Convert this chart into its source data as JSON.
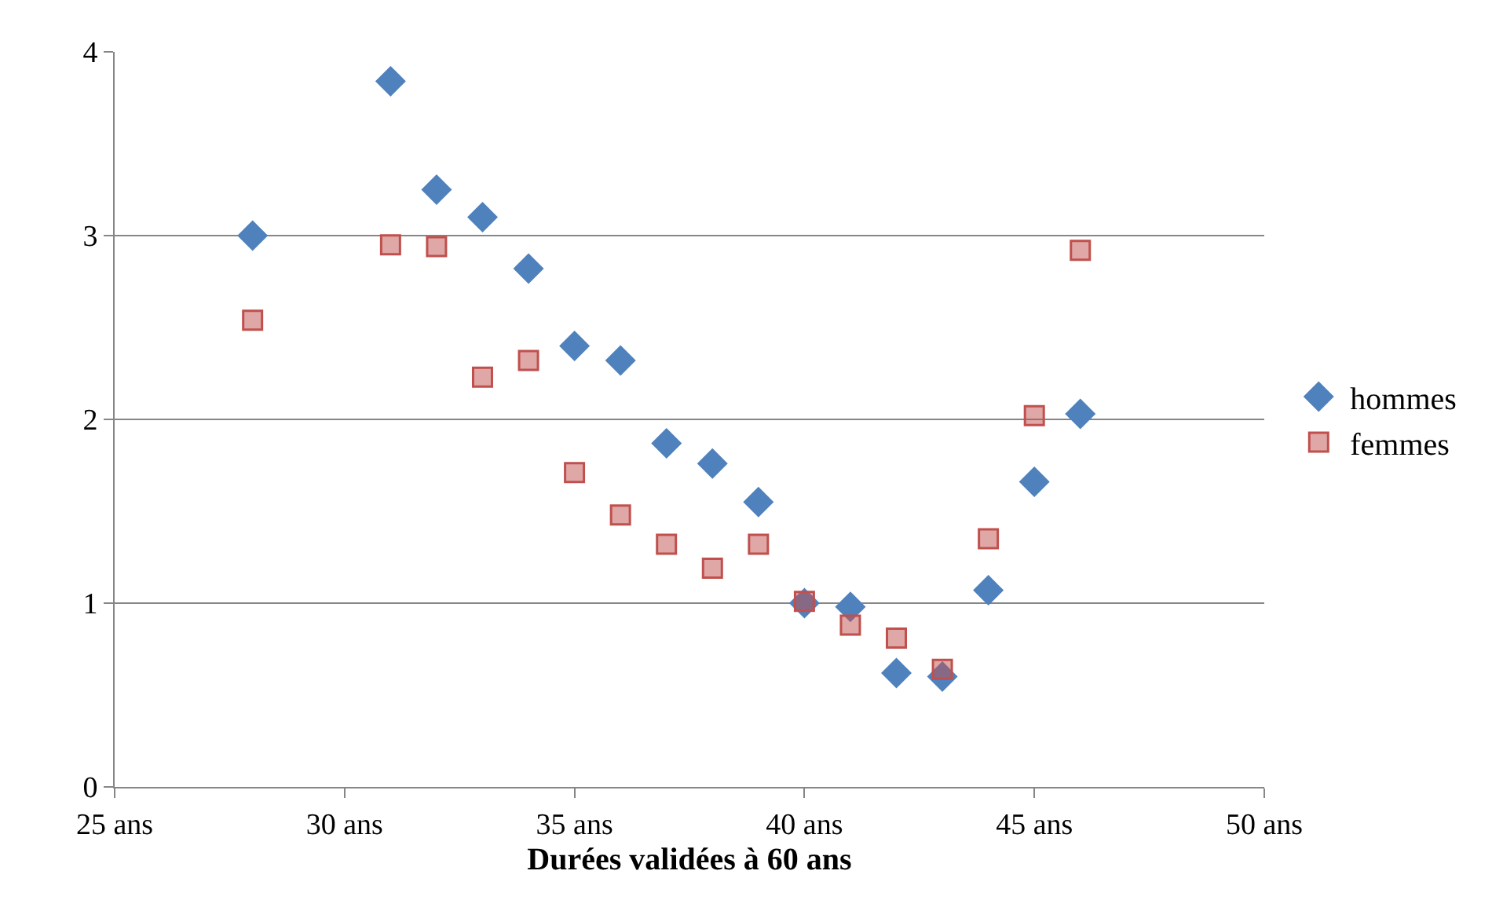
{
  "chart_data": {
    "type": "scatter",
    "xlabel": "Durées validées à 60 ans",
    "xlim": [
      25,
      50
    ],
    "xticks": [
      {
        "value": 25,
        "label": "25 ans"
      },
      {
        "value": 30,
        "label": "30 ans"
      },
      {
        "value": 35,
        "label": "35 ans"
      },
      {
        "value": 40,
        "label": "40 ans"
      },
      {
        "value": 45,
        "label": "45 ans"
      },
      {
        "value": 50,
        "label": "50 ans"
      }
    ],
    "ylim": [
      0,
      4
    ],
    "yticks": [
      0,
      1,
      2,
      3,
      4
    ],
    "grid": "y",
    "legend": "right",
    "series": [
      {
        "name": "hommes",
        "color": "#4f81bd",
        "marker": "diamond",
        "x": [
          28,
          31,
          32,
          33,
          34,
          35,
          36,
          37,
          38,
          39,
          40,
          41,
          42,
          43,
          44,
          45,
          46
        ],
        "values": [
          3.0,
          3.84,
          3.25,
          3.1,
          2.82,
          2.4,
          2.32,
          1.87,
          1.76,
          1.55,
          1.0,
          0.98,
          0.62,
          0.6,
          1.07,
          1.66,
          2.03
        ]
      },
      {
        "name": "femmes",
        "color": "#c0504d",
        "marker": "square",
        "x": [
          28,
          31,
          32,
          33,
          34,
          35,
          36,
          37,
          38,
          39,
          40,
          41,
          42,
          43,
          44,
          45,
          46
        ],
        "values": [
          2.54,
          2.95,
          2.94,
          2.23,
          2.32,
          1.71,
          1.48,
          1.32,
          1.19,
          1.32,
          1.01,
          0.88,
          0.81,
          0.64,
          1.35,
          2.02,
          2.92
        ]
      }
    ]
  }
}
